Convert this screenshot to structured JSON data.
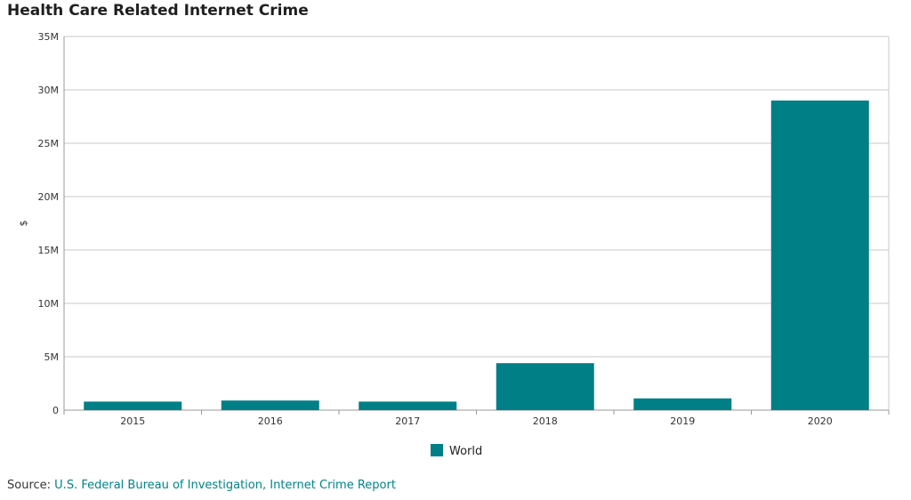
{
  "title": "Health Care Related Internet Crime",
  "source": {
    "prefix": "Source: ",
    "link_text": "U.S. Federal Bureau of Investigation, Internet Crime Report"
  },
  "colors": {
    "bar": "#007f86",
    "grid": "#c8c8c8",
    "axis": "#999999",
    "link": "#00838a"
  },
  "chart_data": {
    "type": "bar",
    "title": "Health Care Related Internet Crime",
    "categories": [
      "2015",
      "2016",
      "2017",
      "2018",
      "2019",
      "2020"
    ],
    "series": [
      {
        "name": "World",
        "values": [
          800000,
          900000,
          800000,
          4400000,
          1100000,
          29000000
        ]
      }
    ],
    "ylabel": "$",
    "xlabel": "",
    "ylim": [
      0,
      35000000
    ],
    "yticks": [
      0,
      5000000,
      10000000,
      15000000,
      20000000,
      25000000,
      30000000,
      35000000
    ],
    "ytick_labels": [
      "0",
      "5M",
      "10M",
      "15M",
      "20M",
      "25M",
      "30M",
      "35M"
    ],
    "grid": true,
    "legend": "bottom-center"
  }
}
